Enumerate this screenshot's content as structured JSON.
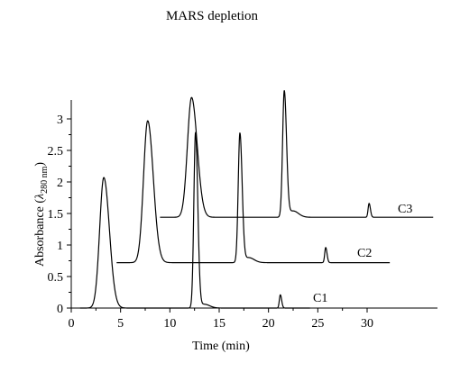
{
  "chart_data": {
    "type": "line",
    "title": "MARS depletion",
    "xlabel": "Time (min)",
    "ylabel": {
      "main": "Absorbance (",
      "symbol": "λ",
      "sub": "280 nm",
      "close": ")"
    },
    "xlim": [
      0,
      32
    ],
    "ylim": [
      0,
      3.3
    ],
    "x_ticks": [
      0,
      5,
      10,
      15,
      20,
      25,
      30
    ],
    "y_ticks": [
      0,
      0.5,
      1,
      1.5,
      2,
      2.5,
      3
    ],
    "x_tick_labels": [
      "0",
      "5",
      "10",
      "15",
      "20",
      "25",
      "30"
    ],
    "y_tick_labels": [
      "0",
      "0.5",
      "1",
      "1.5",
      "2",
      "2.5",
      "3"
    ],
    "grid": false,
    "series": [
      {
        "name": "C1",
        "x_start": 0.9,
        "x_end": 24.2,
        "baseline": 0.0,
        "peaks": [
          {
            "x": 3.3,
            "height": 2.07,
            "width": 0.42
          },
          {
            "x": 12.6,
            "height": 2.78,
            "width": 0.17
          },
          {
            "x": 13.5,
            "height": 0.06,
            "width": 0.4
          },
          {
            "x": 21.2,
            "height": 0.21,
            "width": 0.1
          }
        ]
      },
      {
        "name": "C2",
        "x_start": 4.6,
        "x_end": 32.3,
        "baseline": 0.72,
        "peaks": [
          {
            "x": 7.75,
            "height": 2.25,
            "width": 0.42
          },
          {
            "x": 17.1,
            "height": 2.05,
            "width": 0.17
          },
          {
            "x": 18.0,
            "height": 0.08,
            "width": 0.4
          },
          {
            "x": 25.8,
            "height": 0.24,
            "width": 0.1
          }
        ]
      },
      {
        "name": "C3",
        "x_start": 9.0,
        "x_end": 36.7,
        "baseline": 1.44,
        "peaks": [
          {
            "x": 12.2,
            "height": 1.9,
            "width": 0.42
          },
          {
            "x": 21.6,
            "height": 2.0,
            "width": 0.17
          },
          {
            "x": 22.5,
            "height": 0.1,
            "width": 0.4
          },
          {
            "x": 30.2,
            "height": 0.22,
            "width": 0.1
          }
        ]
      }
    ]
  }
}
